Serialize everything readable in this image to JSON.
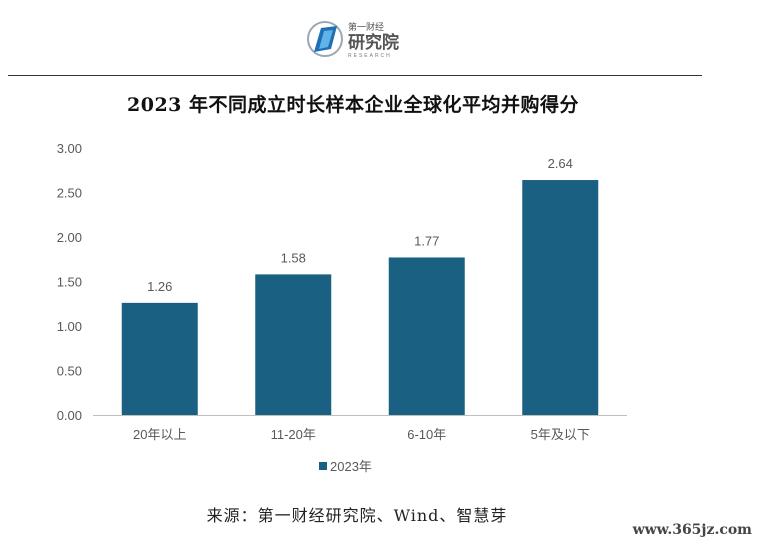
{
  "logo": {
    "line1": "第一财经",
    "line2": "研究院",
    "line3": "RESEARCH"
  },
  "colors": {
    "bar": "#1a6082",
    "axis": "#bfbfbf",
    "text": "#595959"
  },
  "chart_data": {
    "type": "bar",
    "title": "2023 年不同成立时长样本企业全球化平均并购得分",
    "categories": [
      "20年以上",
      "11-20年",
      "6-10年",
      "5年及以下"
    ],
    "series": [
      {
        "name": "2023年",
        "values": [
          1.26,
          1.58,
          1.77,
          2.64
        ]
      }
    ],
    "data_labels": [
      "1.26",
      "1.58",
      "1.77",
      "2.64"
    ],
    "y_ticks": [
      "0.00",
      "0.50",
      "1.00",
      "1.50",
      "2.00",
      "2.50",
      "3.00"
    ],
    "ylim": [
      0,
      3
    ],
    "grid": false,
    "legend_position": "bottom"
  },
  "source": "来源：第一财经研究院、Wind、智慧芽",
  "watermark": "www.365jz.com"
}
